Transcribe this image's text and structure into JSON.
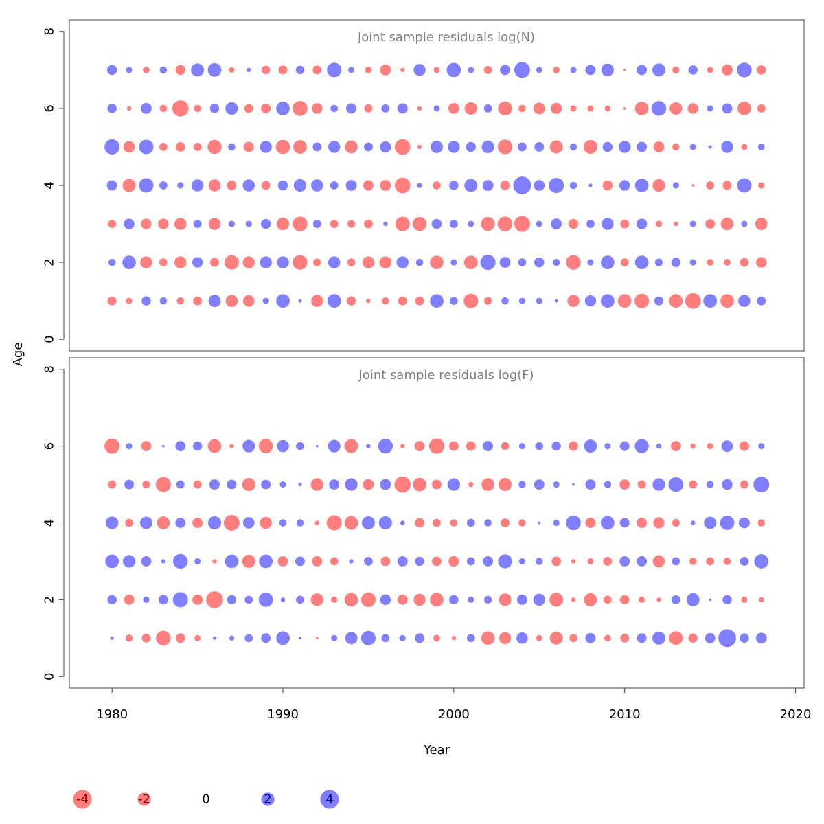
{
  "colors": {
    "negative": "#ff0000",
    "positive": "#0000ff",
    "negative_text": "#8b0000",
    "positive_text": "#00008b",
    "bubble_alpha": 0.5
  },
  "chart_data": {
    "type": "scatter",
    "subtype": "bubble",
    "x": [
      1980,
      1981,
      1982,
      1983,
      1984,
      1985,
      1986,
      1987,
      1988,
      1989,
      1990,
      1991,
      1992,
      1993,
      1994,
      1995,
      1996,
      1997,
      1998,
      1999,
      2000,
      2001,
      2002,
      2003,
      2004,
      2005,
      2006,
      2007,
      2008,
      2009,
      2010,
      2011,
      2012,
      2013,
      2014,
      2015,
      2016,
      2017,
      2018
    ],
    "xlabel": "Year",
    "ylabel": "Age",
    "xlim": [
      1977.5,
      2020.5
    ],
    "x_ticks": [
      "1980",
      "1990",
      "2000",
      "2010",
      "2020"
    ],
    "ylim": [
      -0.3,
      8.3
    ],
    "y_ticks": [
      "0",
      "2",
      "4",
      "6",
      "8"
    ],
    "grid": false,
    "size_encoding": "absolute residual",
    "color_encoding": "sign of residual",
    "legend": {
      "placement": "bottom",
      "entries": [
        {
          "label": "-4",
          "value": -4
        },
        {
          "label": "-2",
          "value": -2
        },
        {
          "label": "0",
          "value": 0
        },
        {
          "label": "2",
          "value": 2
        },
        {
          "label": "4",
          "value": 4
        }
      ]
    },
    "panels": [
      {
        "title": "Joint sample residuals log(N)",
        "ages": [
          1,
          2,
          3,
          4,
          5,
          6,
          7
        ],
        "residuals": [
          [
            -1.2,
            -0.6,
            1.3,
            0.8,
            -0.8,
            -1.2,
            2.3,
            -2.2,
            -2.0,
            0.6,
            2.8,
            0.2,
            -2.2,
            2.8,
            -1.3,
            -0.3,
            -0.8,
            -1.2,
            -1.2,
            2.8,
            1.0,
            -3.2,
            -0.9,
            0.8,
            0.6,
            0.6,
            0.2,
            -2.2,
            1.9,
            2.8,
            -2.8,
            -3.2,
            1.2,
            -2.8,
            -3.8,
            2.8,
            -2.8,
            2.2,
            1.2
          ],
          [
            0.8,
            2.8,
            -2.2,
            -1.0,
            -2.2,
            1.7,
            -1.2,
            -3.2,
            -2.2,
            2.2,
            2.2,
            -3.3,
            -0.9,
            2.2,
            -1.0,
            -2.2,
            -2.2,
            2.2,
            0.8,
            -2.8,
            0.6,
            -2.8,
            3.5,
            1.8,
            1.0,
            1.5,
            0.8,
            -3.3,
            0.6,
            2.8,
            -1.0,
            2.8,
            0.9,
            1.3,
            0.6,
            -0.7,
            -0.7,
            -1.2,
            -1.7
          ],
          [
            -1.0,
            1.7,
            -1.7,
            -1.7,
            -2.2,
            1.0,
            -2.2,
            0.6,
            0.6,
            1.5,
            -2.4,
            -3.3,
            1.0,
            -1.0,
            -0.9,
            -1.2,
            0.3,
            -3.2,
            -3.0,
            1.5,
            1.0,
            0.6,
            -3.0,
            -3.3,
            -3.8,
            0.6,
            1.8,
            -1.5,
            1.0,
            2.2,
            -1.2,
            1.7,
            -0.6,
            -0.3,
            0.6,
            -1.4,
            -2.4,
            0.6,
            -2.3
          ],
          [
            1.6,
            -2.6,
            3.2,
            1.0,
            0.6,
            2.2,
            -2.2,
            -1.4,
            2.2,
            -1.2,
            1.5,
            2.4,
            2.2,
            1.0,
            1.8,
            -1.6,
            -1.8,
            -3.7,
            0.4,
            -1.0,
            1.3,
            2.6,
            1.8,
            -1.4,
            4.8,
            1.8,
            3.5,
            0.8,
            0.2,
            -1.5,
            1.7,
            2.8,
            -2.4,
            0.6,
            -0.1,
            -1.0,
            -1.2,
            3.2,
            -0.6
          ],
          [
            3.5,
            -2.0,
            3.2,
            -1.0,
            -1.4,
            -1.0,
            -3.0,
            0.8,
            -1.6,
            2.2,
            -3.1,
            -2.8,
            1.2,
            2.2,
            -2.5,
            1.2,
            1.9,
            -3.7,
            -0.3,
            2.3,
            2.2,
            1.5,
            2.4,
            -3.3,
            1.2,
            1.4,
            -2.6,
            0.8,
            -2.9,
            1.5,
            2.2,
            1.6,
            -1.8,
            -0.8,
            0.6,
            0.2,
            2.2,
            -0.6,
            0.7
          ],
          [
            1.3,
            -0.3,
            1.8,
            -0.8,
            -4.0,
            -0.8,
            1.3,
            2.4,
            -1.2,
            -1.4,
            2.8,
            -3.4,
            -1.7,
            0.8,
            1.6,
            -1.0,
            1.0,
            1.6,
            -0.3,
            0.6,
            -1.8,
            -2.4,
            1.0,
            -3.0,
            -0.8,
            -2.1,
            -1.9,
            -0.6,
            -0.6,
            -0.5,
            -0.1,
            -2.8,
            3.3,
            -2.4,
            -1.7,
            0.6,
            1.6,
            -2.8,
            -1.0
          ],
          [
            1.5,
            0.6,
            -0.7,
            0.8,
            -1.5,
            2.6,
            2.8,
            -0.5,
            0.3,
            -1.1,
            -1.2,
            1.1,
            -1.2,
            3.2,
            0.6,
            -0.7,
            -1.8,
            -0.3,
            2.2,
            -0.6,
            3.1,
            0.6,
            -1.0,
            1.6,
            3.8,
            0.6,
            -0.7,
            0.6,
            1.6,
            2.4,
            -0.1,
            1.6,
            2.6,
            -0.8,
            1.3,
            -0.6,
            -1.8,
            3.3,
            -1.3
          ]
        ]
      },
      {
        "title": "Joint sample residuals log(F)",
        "ages": [
          1,
          2,
          3,
          4,
          5,
          6
        ],
        "residuals": [
          [
            0.2,
            -0.8,
            -1.2,
            -3.3,
            -1.4,
            -0.6,
            0.2,
            0.4,
            1.0,
            1.4,
            2.8,
            0.1,
            -0.1,
            0.6,
            2.3,
            3.2,
            1.0,
            0.6,
            1.4,
            -0.7,
            -0.3,
            1.0,
            -2.8,
            -2.2,
            2.0,
            -0.6,
            -2.6,
            -1.0,
            1.6,
            -0.7,
            -1.2,
            1.4,
            2.6,
            -2.9,
            -1.3,
            1.6,
            4.8,
            1.3,
            1.8
          ],
          [
            1.3,
            -1.6,
            0.6,
            1.4,
            3.5,
            -1.6,
            -4.3,
            1.3,
            1.0,
            3.1,
            0.3,
            1.0,
            -2.4,
            -0.6,
            -2.8,
            -3.2,
            1.7,
            -1.6,
            -2.2,
            -2.8,
            1.3,
            0.6,
            0.9,
            -2.4,
            1.6,
            2.2,
            -2.9,
            -0.3,
            -2.6,
            -1.0,
            -1.3,
            -0.6,
            -0.3,
            1.2,
            2.6,
            0.1,
            1.3,
            -0.6,
            -0.4
          ],
          [
            2.8,
            2.4,
            1.6,
            0.3,
            3.3,
            0.6,
            -0.3,
            2.8,
            -2.6,
            2.8,
            -1.6,
            1.4,
            -1.6,
            -1.0,
            0.3,
            1.2,
            -1.4,
            1.6,
            1.3,
            -1.4,
            -1.7,
            1.0,
            1.6,
            3.0,
            0.6,
            0.8,
            -1.4,
            -0.3,
            -0.6,
            -1.2,
            1.6,
            1.6,
            -2.2,
            1.0,
            -0.8,
            -1.0,
            -0.8,
            1.2,
            3.1
          ],
          [
            2.4,
            -1.0,
            2.3,
            -2.5,
            1.6,
            -1.6,
            2.6,
            -3.8,
            2.0,
            -2.2,
            0.8,
            0.8,
            -0.3,
            -3.5,
            -2.8,
            2.6,
            2.6,
            0.3,
            -1.4,
            -1.0,
            -0.8,
            1.0,
            0.8,
            -1.2,
            -0.8,
            0.1,
            0.6,
            3.3,
            -1.6,
            2.8,
            1.4,
            -1.6,
            -1.9,
            -0.9,
            0.3,
            2.3,
            3.1,
            1.8,
            -0.8
          ],
          [
            -1.0,
            1.4,
            -0.9,
            -3.5,
            1.0,
            -1.0,
            1.6,
            1.4,
            -2.6,
            1.4,
            0.6,
            0.2,
            -2.4,
            1.6,
            2.4,
            -1.8,
            1.8,
            -4.0,
            -2.8,
            -1.4,
            2.4,
            -0.4,
            -2.5,
            -2.6,
            0.8,
            1.6,
            0.6,
            0.1,
            1.6,
            0.8,
            -1.6,
            -1.0,
            2.4,
            3.3,
            -1.0,
            0.8,
            1.7,
            -1.0,
            3.8
          ],
          [
            -3.5,
            0.6,
            -1.6,
            0.1,
            1.6,
            1.3,
            -2.8,
            -0.3,
            2.4,
            -3.1,
            2.2,
            1.0,
            0.1,
            2.4,
            -2.9,
            0.3,
            3.3,
            -0.3,
            -1.6,
            -3.6,
            -1.4,
            -1.4,
            1.6,
            -1.0,
            0.6,
            1.0,
            1.3,
            -1.4,
            2.6,
            0.6,
            1.4,
            3.0,
            0.4,
            -1.6,
            -0.4,
            -0.6,
            2.0,
            -1.4,
            0.6
          ]
        ]
      }
    ]
  }
}
